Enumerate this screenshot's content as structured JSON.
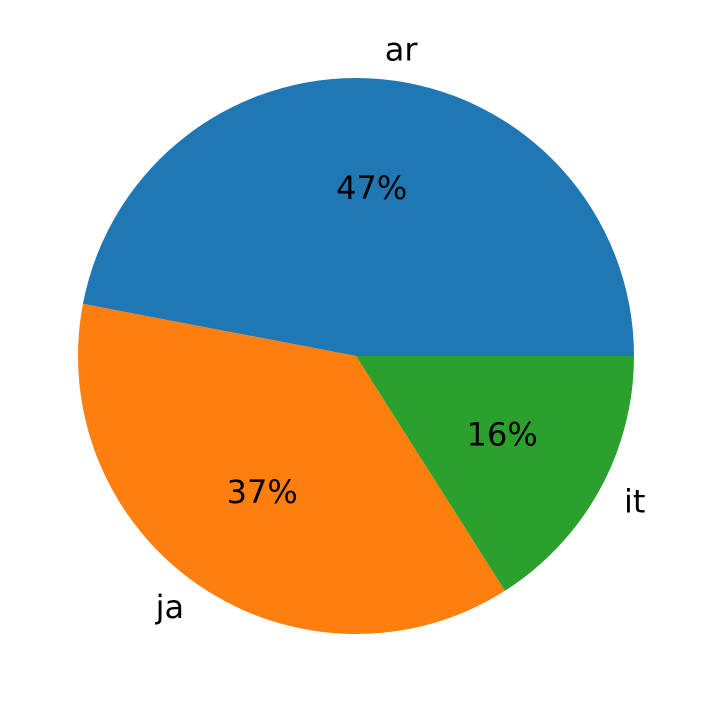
{
  "chart_data": {
    "type": "pie",
    "categories": [
      "ar",
      "ja",
      "it"
    ],
    "values": [
      47,
      37,
      16
    ],
    "value_labels": [
      "47%",
      "37%",
      "16%"
    ],
    "colors": [
      "#1f77b4",
      "#ff7f0e",
      "#2ca02c"
    ]
  }
}
